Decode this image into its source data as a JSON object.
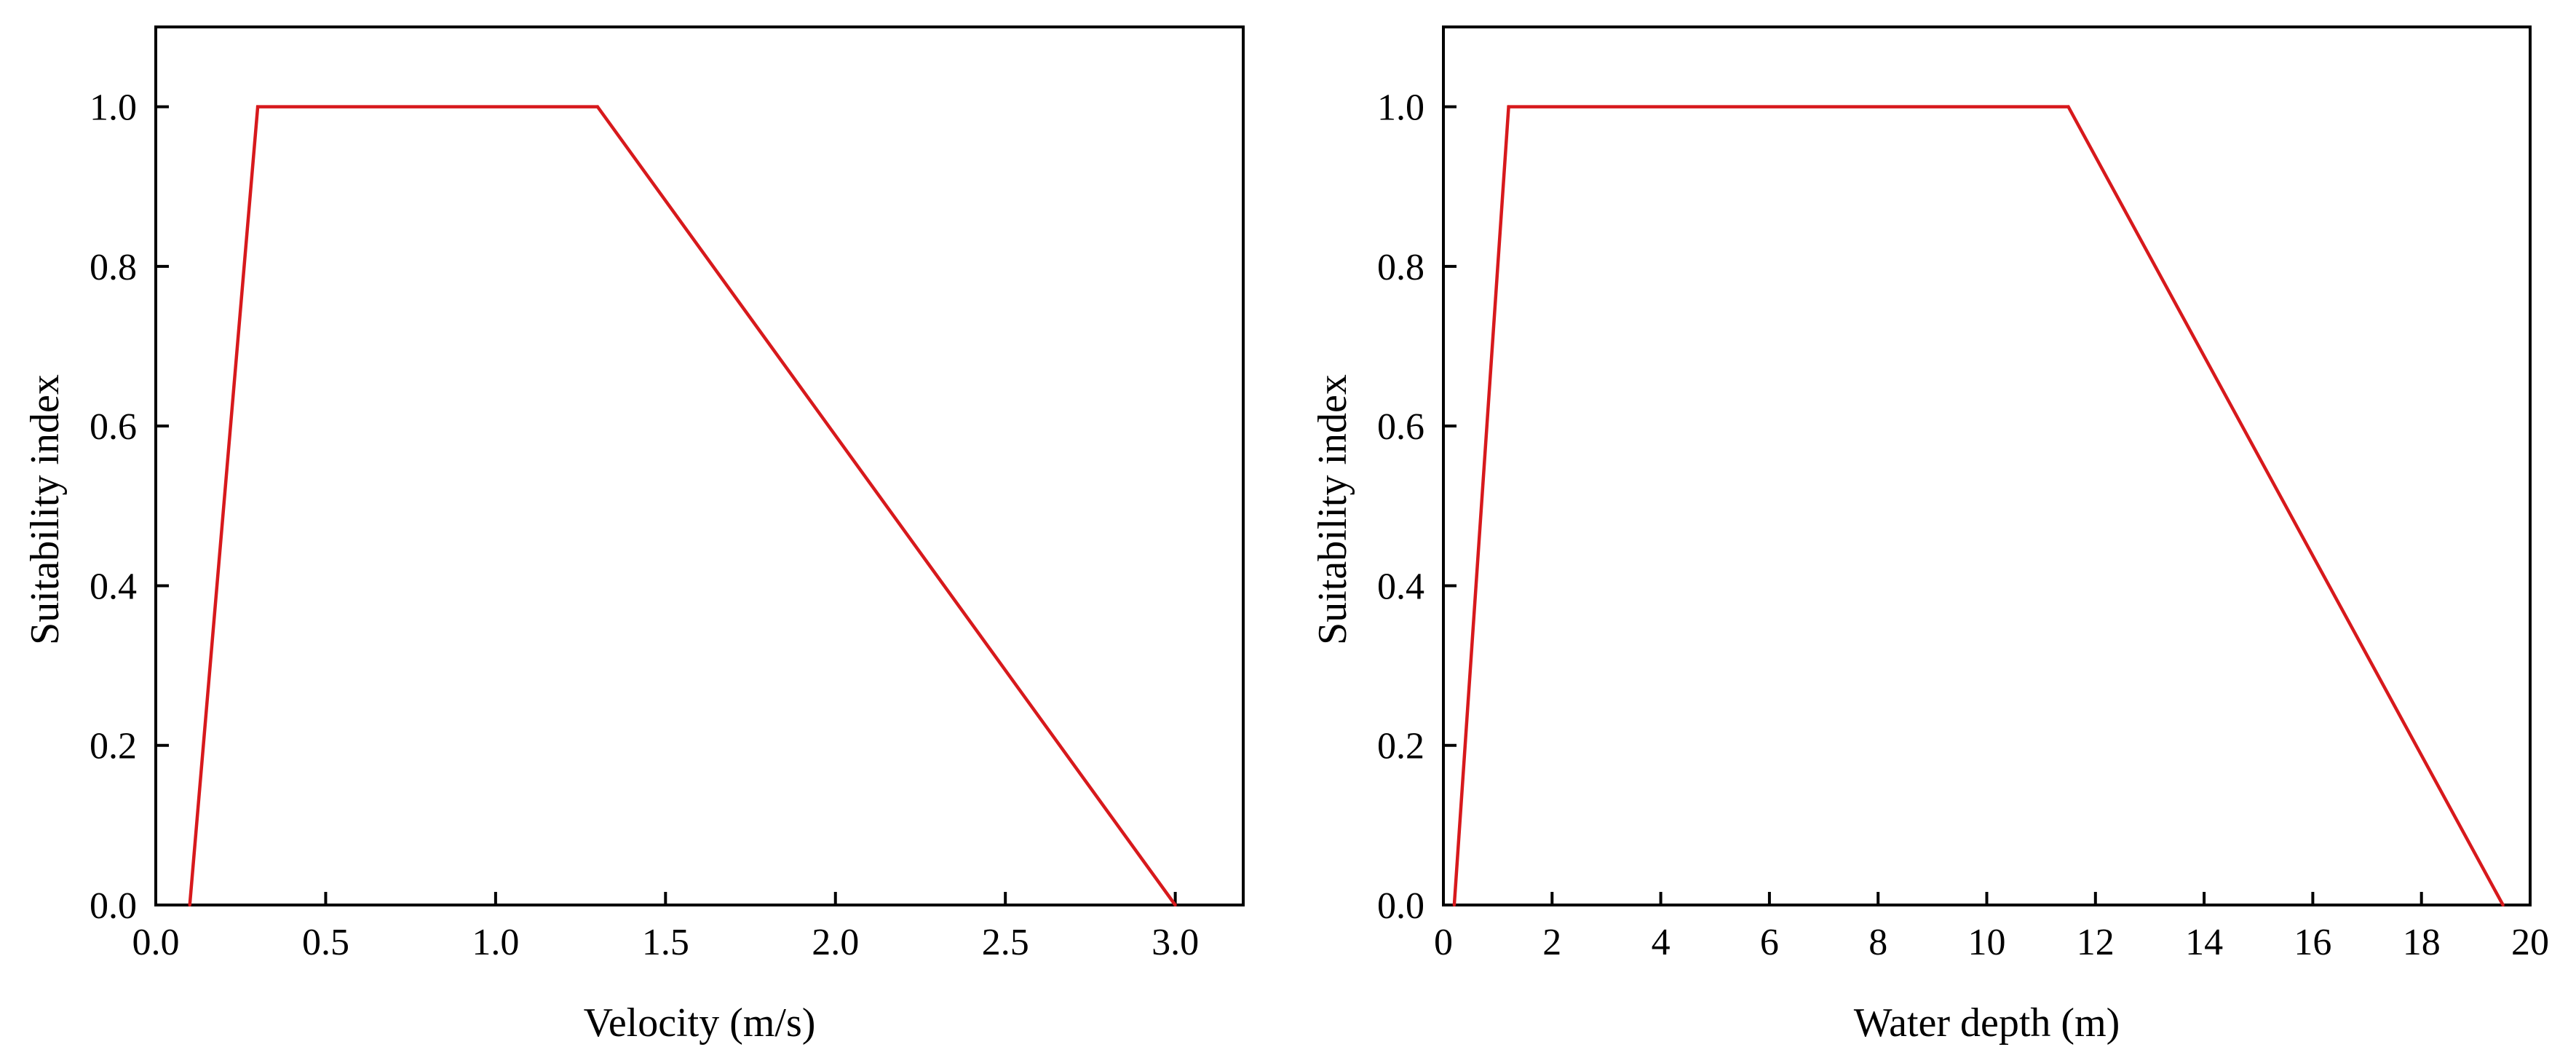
{
  "chart_data": [
    {
      "type": "line",
      "title": "",
      "xlabel": "Velocity (m/s)",
      "ylabel": "Suitability index",
      "xlim": [
        0.0,
        3.2
      ],
      "ylim": [
        0.0,
        1.1
      ],
      "xticks": [
        0.0,
        0.5,
        1.0,
        1.5,
        2.0,
        2.5,
        3.0
      ],
      "xtick_labels": [
        "0.0",
        "0.5",
        "1.0",
        "1.5",
        "2.0",
        "2.5",
        "3.0"
      ],
      "yticks": [
        0.0,
        0.2,
        0.4,
        0.6,
        0.8,
        1.0
      ],
      "ytick_labels": [
        "0.0",
        "0.2",
        "0.4",
        "0.6",
        "0.8",
        "1.0"
      ],
      "grid": false,
      "series": [
        {
          "x": [
            0.1,
            0.3,
            1.3,
            3.0
          ],
          "y": [
            0.0,
            1.0,
            1.0,
            0.0
          ],
          "color": "#d7191c"
        }
      ]
    },
    {
      "type": "line",
      "title": "",
      "xlabel": "Water depth (m)",
      "ylabel": "Suitability index",
      "xlim": [
        0,
        20
      ],
      "ylim": [
        0.0,
        1.1
      ],
      "xticks": [
        0,
        2,
        4,
        6,
        8,
        10,
        12,
        14,
        16,
        18,
        20
      ],
      "xtick_labels": [
        "0",
        "2",
        "4",
        "6",
        "8",
        "10",
        "12",
        "14",
        "16",
        "18",
        "20"
      ],
      "yticks": [
        0.0,
        0.2,
        0.4,
        0.6,
        0.8,
        1.0
      ],
      "ytick_labels": [
        "0.0",
        "0.2",
        "0.4",
        "0.6",
        "0.8",
        "1.0"
      ],
      "grid": false,
      "series": [
        {
          "x": [
            0.2,
            1.2,
            11.5,
            19.5
          ],
          "y": [
            0.0,
            1.0,
            1.0,
            0.0
          ],
          "color": "#d7191c"
        }
      ]
    }
  ]
}
